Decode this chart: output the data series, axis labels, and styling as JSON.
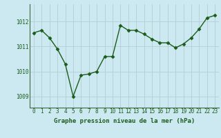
{
  "x": [
    0,
    1,
    2,
    3,
    4,
    5,
    6,
    7,
    8,
    9,
    10,
    11,
    12,
    13,
    14,
    15,
    16,
    17,
    18,
    19,
    20,
    21,
    22,
    23
  ],
  "y": [
    1011.55,
    1011.65,
    1011.35,
    1010.9,
    1010.3,
    1009.0,
    1009.85,
    1009.9,
    1010.0,
    1010.6,
    1010.6,
    1011.85,
    1011.65,
    1011.65,
    1011.5,
    1011.3,
    1011.15,
    1011.15,
    1010.95,
    1011.1,
    1011.35,
    1011.7,
    1012.15,
    1012.25
  ],
  "line_color": "#1a5c1a",
  "marker": "D",
  "markersize": 2.5,
  "linewidth": 1.0,
  "background_color": "#cce8f0",
  "grid_color": "#b0c8d0",
  "xlabel": "Graphe pression niveau de la mer (hPa)",
  "xlabel_color": "#1a5c1a",
  "xlabel_fontsize": 6.5,
  "tick_color": "#1a5c1a",
  "tick_fontsize": 5.5,
  "ytick_labels": [
    "1009",
    "1010",
    "1011",
    "1012"
  ],
  "ytick_values": [
    1009,
    1010,
    1011,
    1012
  ],
  "ylim": [
    1008.55,
    1012.7
  ],
  "xlim": [
    -0.5,
    23.5
  ]
}
